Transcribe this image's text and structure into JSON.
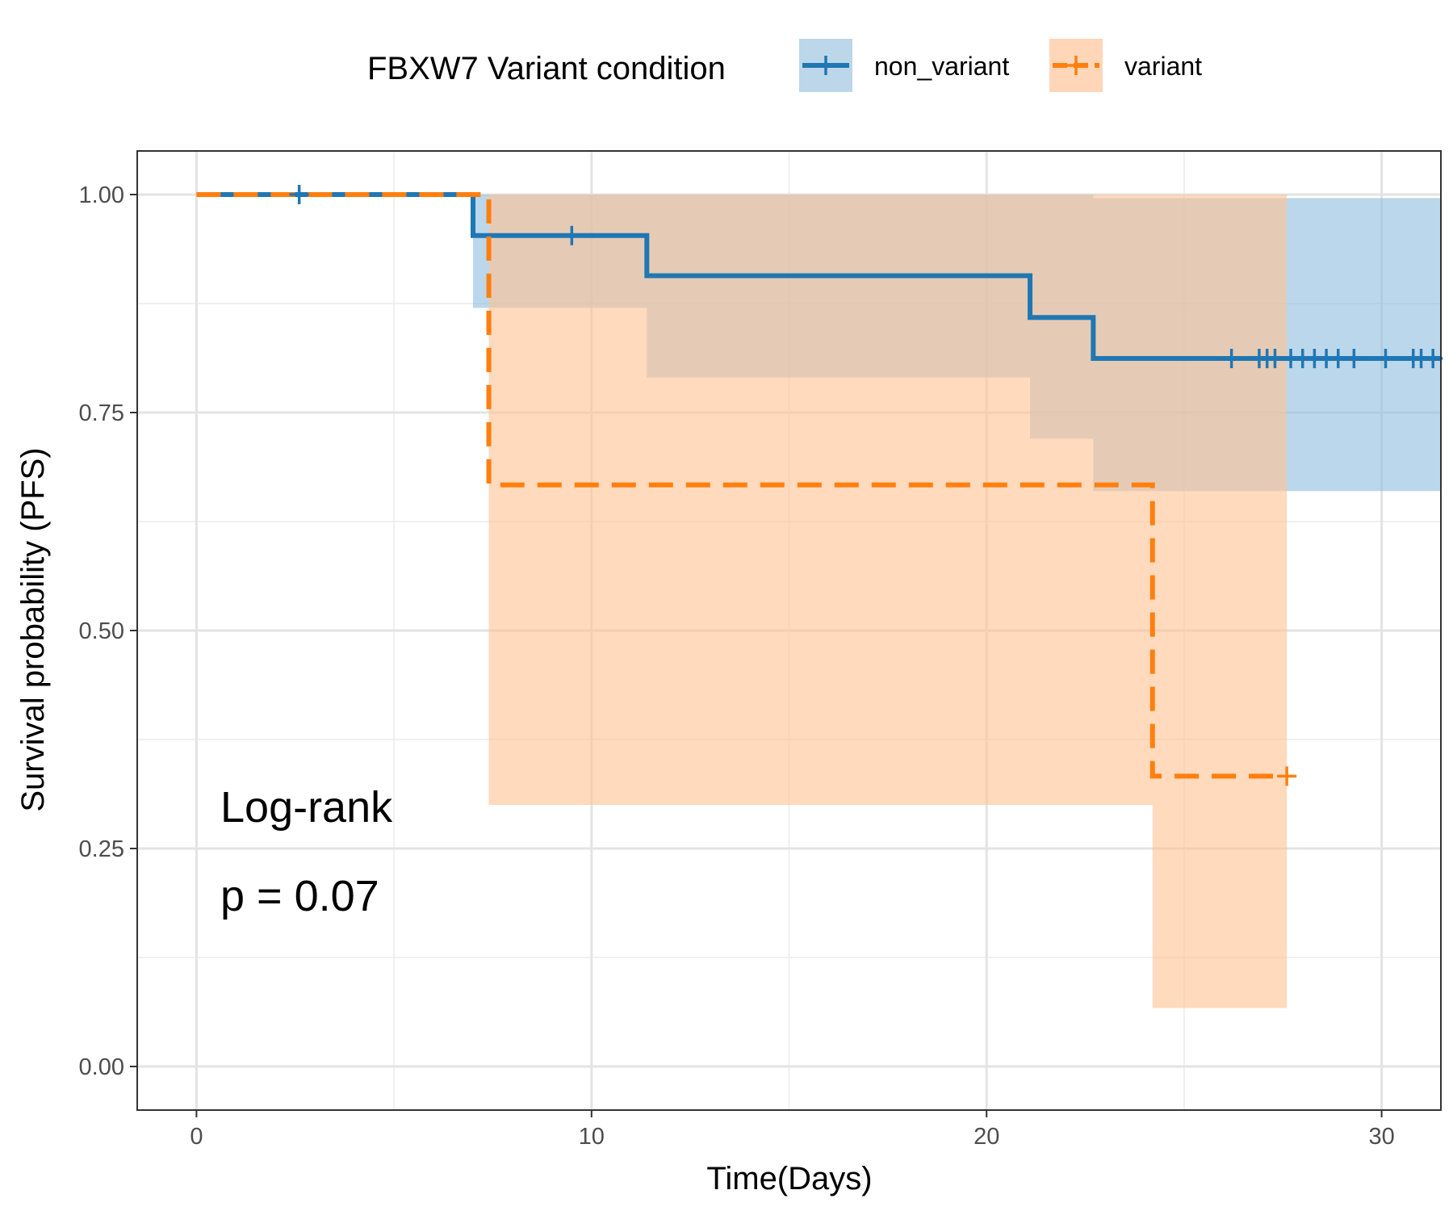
{
  "chart_data": {
    "type": "line",
    "subtype": "kaplan-meier",
    "title": "",
    "xlabel": "Time(Days)",
    "ylabel": "Survival probability (PFS)",
    "xlim": [
      -1.5,
      31.5
    ],
    "ylim": [
      -0.05,
      1.05
    ],
    "x_ticks": [
      0,
      10,
      20,
      30
    ],
    "x_tick_labels": [
      "0",
      "10",
      "20",
      "30"
    ],
    "y_ticks": [
      0,
      0.25,
      0.5,
      0.75,
      1.0
    ],
    "y_tick_labels": [
      "0.00",
      "0.25",
      "0.50",
      "0.75",
      "1.00"
    ],
    "grid": true,
    "legend": {
      "title": "FBXW7 Variant condition",
      "position": "top",
      "entries": [
        "non_variant",
        "variant"
      ]
    },
    "annotations": [
      "Log-rank",
      "p = 0.07"
    ],
    "series": [
      {
        "name": "non_variant",
        "color": "#1f77b4",
        "line_style": "solid",
        "steps": [
          [
            0,
            1.0
          ],
          [
            7.0,
            0.953
          ],
          [
            11.4,
            0.907
          ],
          [
            21.1,
            0.859
          ],
          [
            22.7,
            0.812
          ],
          [
            31.5,
            0.812
          ]
        ],
        "ci_band": [
          [
            0,
            1.0,
            1.0
          ],
          [
            7.0,
            0.87,
            1.0
          ],
          [
            11.4,
            0.79,
            1.0
          ],
          [
            21.1,
            0.72,
            1.0
          ],
          [
            22.7,
            0.66,
            0.996
          ],
          [
            31.5,
            0.66,
            0.996
          ]
        ],
        "censor_times": [
          2.6,
          9.5,
          26.2,
          26.9,
          27.1,
          27.3,
          27.7,
          28.0,
          28.3,
          28.6,
          28.9,
          29.3,
          30.1,
          30.8,
          31.0,
          31.3
        ]
      },
      {
        "name": "variant",
        "color": "#ff7f0e",
        "line_style": "dashed",
        "steps": [
          [
            0,
            1.0
          ],
          [
            7.4,
            0.667
          ],
          [
            24.2,
            0.333
          ],
          [
            27.6,
            0.333
          ]
        ],
        "ci_band": [
          [
            0,
            1.0,
            1.0
          ],
          [
            7.4,
            0.3,
            1.0
          ],
          [
            24.2,
            0.067,
            1.0
          ],
          [
            27.6,
            0.067,
            1.0
          ]
        ],
        "censor_times": [
          27.6
        ]
      }
    ]
  }
}
